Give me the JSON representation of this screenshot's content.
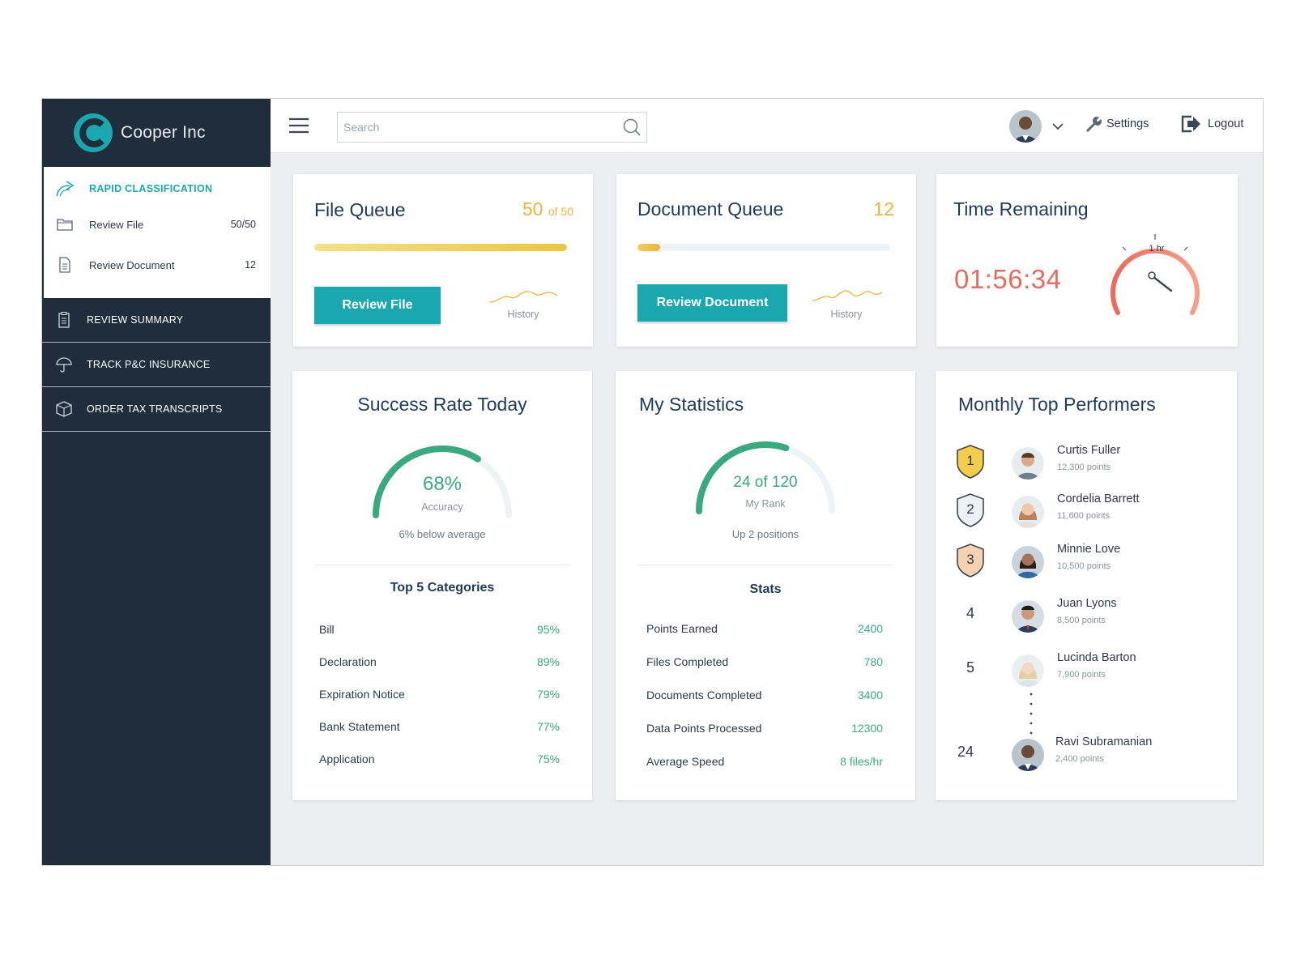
{
  "brand": {
    "name": "Cooper Inc",
    "logo_icon": "c-logo-icon",
    "accent": "#1aa8ae"
  },
  "sidebar": {
    "sub_header": "RAPID CLASSIFICATION",
    "sub_items": [
      {
        "label": "Review File",
        "count": "50/50",
        "icon": "folder-icon"
      },
      {
        "label": "Review Document",
        "count": "12",
        "icon": "document-icon"
      }
    ],
    "nav_items": [
      {
        "label": "REVIEW SUMMARY",
        "icon": "clipboard-icon"
      },
      {
        "label": "TRACK P&C INSURANCE",
        "icon": "umbrella-icon"
      },
      {
        "label": "ORDER TAX TRANSCRIPTS",
        "icon": "box-icon"
      }
    ]
  },
  "topbar": {
    "search_placeholder": "Search",
    "settings_label": "Settings",
    "logout_label": "Logout"
  },
  "file_queue": {
    "title": "File Queue",
    "count": "50",
    "of_text": "of 50",
    "progress": 1.0,
    "button_label": "Review File",
    "history_label": "History"
  },
  "document_queue": {
    "title": "Document Queue",
    "count": "12",
    "progress": 0.09,
    "button_label": "Review Document",
    "history_label": "History"
  },
  "time_remaining": {
    "title": "Time Remaining",
    "value": "01:56:34",
    "gauge_label": "1 hr",
    "color": "#e96b5b"
  },
  "success_rate": {
    "title": "Success Rate Today",
    "value": "68%",
    "fraction": 0.68,
    "sub_label": "Accuracy",
    "note": "6% below average",
    "categories_title": "Top 5 Categories",
    "categories": [
      {
        "label": "Bill",
        "value": "95%"
      },
      {
        "label": "Declaration",
        "value": "89%"
      },
      {
        "label": "Expiration Notice",
        "value": "79%"
      },
      {
        "label": "Bank Statement",
        "value": "77%"
      },
      {
        "label": "Application",
        "value": "75%"
      }
    ]
  },
  "my_statistics": {
    "title": "My Statistics",
    "value": "24 of 120",
    "fraction": 0.6,
    "sub_label": "My Rank",
    "note": "Up 2 positions",
    "stats_title": "Stats",
    "stats": [
      {
        "label": "Points Earned",
        "value": "2400"
      },
      {
        "label": "Files Completed",
        "value": "780"
      },
      {
        "label": "Documents Completed",
        "value": "3400"
      },
      {
        "label": "Data Points Processed",
        "value": "12300"
      },
      {
        "label": "Average Speed",
        "value": "8 files/hr"
      }
    ]
  },
  "top_performers": {
    "title": "Monthly Top Performers",
    "entries": [
      {
        "rank": "1",
        "name": "Curtis Fuller",
        "points": "12,300 points",
        "badge": "gold"
      },
      {
        "rank": "2",
        "name": "Cordelia Barrett",
        "points": "11,600 points",
        "badge": "silver"
      },
      {
        "rank": "3",
        "name": "Minnie Love",
        "points": "10,500 points",
        "badge": "bronze"
      },
      {
        "rank": "4",
        "name": "Juan Lyons",
        "points": "8,500 points"
      },
      {
        "rank": "5",
        "name": "Lucinda Barton",
        "points": "7,900 points"
      },
      {
        "rank": "24",
        "name": "Ravi Subramanian",
        "points": "2,400 points"
      }
    ]
  }
}
